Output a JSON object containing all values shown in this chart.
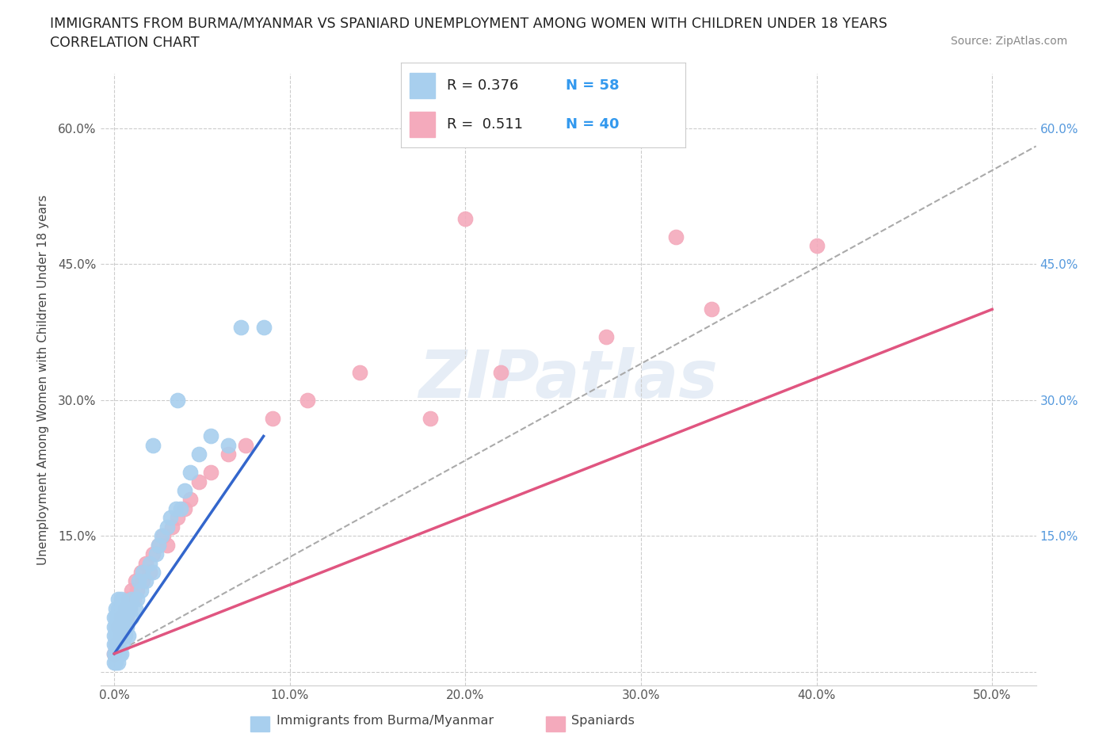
{
  "title": "IMMIGRANTS FROM BURMA/MYANMAR VS SPANIARD UNEMPLOYMENT AMONG WOMEN WITH CHILDREN UNDER 18 YEARS",
  "subtitle": "CORRELATION CHART",
  "source": "Source: ZipAtlas.com",
  "ylabel": "Unemployment Among Women with Children Under 18 years",
  "watermark": "ZIPatlas",
  "x_tick_positions": [
    0.0,
    0.1,
    0.2,
    0.3,
    0.4,
    0.5
  ],
  "x_tick_labels": [
    "0.0%",
    "10.0%",
    "20.0%",
    "30.0%",
    "40.0%",
    "50.0%"
  ],
  "y_tick_positions": [
    0.0,
    0.15,
    0.3,
    0.45,
    0.6
  ],
  "y_tick_labels": [
    "",
    "15.0%",
    "30.0%",
    "45.0%",
    "60.0%"
  ],
  "xlim": [
    -0.008,
    0.525
  ],
  "ylim": [
    -0.015,
    0.66
  ],
  "blue_color": "#A8CFEE",
  "pink_color": "#F4AABC",
  "blue_line_color": "#3366CC",
  "pink_line_color": "#E05580",
  "dashed_line_color": "#AAAAAA",
  "grid_color": "#CCCCCC",
  "right_tick_color": "#5599DD",
  "legend_R1": "0.376",
  "legend_N1": "58",
  "legend_R2": "0.511",
  "legend_N2": "40",
  "blue_scatter_x": [
    0.0,
    0.0,
    0.0,
    0.0,
    0.0,
    0.0,
    0.001,
    0.001,
    0.001,
    0.001,
    0.001,
    0.001,
    0.001,
    0.002,
    0.002,
    0.002,
    0.002,
    0.002,
    0.003,
    0.003,
    0.003,
    0.004,
    0.004,
    0.004,
    0.005,
    0.005,
    0.005,
    0.006,
    0.006,
    0.007,
    0.008,
    0.009,
    0.01,
    0.01,
    0.012,
    0.013,
    0.014,
    0.015,
    0.016,
    0.018,
    0.02,
    0.022,
    0.024,
    0.025,
    0.027,
    0.03,
    0.032,
    0.035,
    0.038,
    0.04,
    0.043,
    0.048,
    0.055,
    0.065,
    0.072,
    0.085,
    0.022,
    0.036
  ],
  "blue_scatter_y": [
    0.02,
    0.03,
    0.04,
    0.05,
    0.01,
    0.06,
    0.01,
    0.02,
    0.03,
    0.04,
    0.05,
    0.06,
    0.07,
    0.01,
    0.03,
    0.05,
    0.07,
    0.08,
    0.02,
    0.04,
    0.06,
    0.02,
    0.04,
    0.08,
    0.03,
    0.05,
    0.07,
    0.04,
    0.06,
    0.05,
    0.04,
    0.07,
    0.06,
    0.08,
    0.07,
    0.08,
    0.1,
    0.09,
    0.11,
    0.1,
    0.12,
    0.11,
    0.13,
    0.14,
    0.15,
    0.16,
    0.17,
    0.18,
    0.18,
    0.2,
    0.22,
    0.24,
    0.26,
    0.25,
    0.38,
    0.38,
    0.25,
    0.3
  ],
  "pink_scatter_x": [
    0.0,
    0.001,
    0.002,
    0.003,
    0.004,
    0.005,
    0.006,
    0.007,
    0.008,
    0.009,
    0.01,
    0.011,
    0.012,
    0.013,
    0.015,
    0.016,
    0.018,
    0.02,
    0.022,
    0.025,
    0.028,
    0.03,
    0.033,
    0.036,
    0.04,
    0.043,
    0.048,
    0.055,
    0.065,
    0.075,
    0.09,
    0.11,
    0.14,
    0.18,
    0.22,
    0.28,
    0.34,
    0.4,
    0.2,
    0.32
  ],
  "pink_scatter_y": [
    0.02,
    0.03,
    0.05,
    0.04,
    0.06,
    0.05,
    0.07,
    0.06,
    0.08,
    0.07,
    0.09,
    0.08,
    0.1,
    0.09,
    0.11,
    0.1,
    0.12,
    0.11,
    0.13,
    0.14,
    0.15,
    0.14,
    0.16,
    0.17,
    0.18,
    0.19,
    0.21,
    0.22,
    0.24,
    0.25,
    0.28,
    0.3,
    0.33,
    0.28,
    0.33,
    0.37,
    0.4,
    0.47,
    0.5,
    0.48
  ],
  "blue_line_x": [
    0.0,
    0.085
  ],
  "blue_line_y": [
    0.02,
    0.26
  ],
  "pink_line_x": [
    0.0,
    0.5
  ],
  "pink_line_y": [
    0.02,
    0.4
  ],
  "dashed_line_x": [
    0.0,
    0.525
  ],
  "dashed_line_y": [
    0.02,
    0.58
  ]
}
